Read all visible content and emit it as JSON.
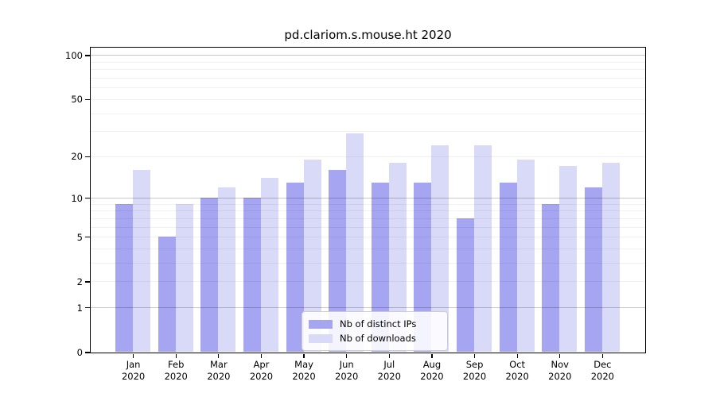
{
  "chart_data": {
    "type": "bar",
    "title": "pd.clariom.s.mouse.ht 2020",
    "categories": [
      "Jan 2020",
      "Feb 2020",
      "Mar 2020",
      "Apr 2020",
      "May 2020",
      "Jun 2020",
      "Jul 2020",
      "Aug 2020",
      "Sep 2020",
      "Oct 2020",
      "Nov 2020",
      "Dec 2020"
    ],
    "x_tick_month_line": [
      "Jan",
      "Feb",
      "Mar",
      "Apr",
      "May",
      "Jun",
      "Jul",
      "Aug",
      "Sep",
      "Oct",
      "Nov",
      "Dec"
    ],
    "x_tick_year_line": "2020",
    "series": [
      {
        "name": "Nb of distinct IPs",
        "color": "#a5a5f1",
        "values": [
          9,
          5,
          10,
          10,
          13,
          16,
          13,
          13,
          7,
          13,
          9,
          12
        ]
      },
      {
        "name": "Nb of downloads",
        "color": "#d9d9f8",
        "values": [
          16,
          9,
          12,
          14,
          19,
          29,
          18,
          24,
          24,
          19,
          17,
          18
        ]
      }
    ],
    "y_scale": "log10(1+x)",
    "y_tick_labels": [
      0,
      1,
      2,
      5,
      10,
      20,
      50,
      100
    ],
    "y_major_gridlines": [
      1,
      10,
      100
    ],
    "y_minor_gridlines": [
      2,
      3,
      4,
      5,
      6,
      7,
      8,
      9,
      20,
      30,
      40,
      50,
      60,
      70,
      80,
      90
    ],
    "ylim": [
      0,
      113
    ],
    "xlim": [
      -1,
      12
    ],
    "grid": true,
    "legend_position": "lower center (inside plot)"
  }
}
